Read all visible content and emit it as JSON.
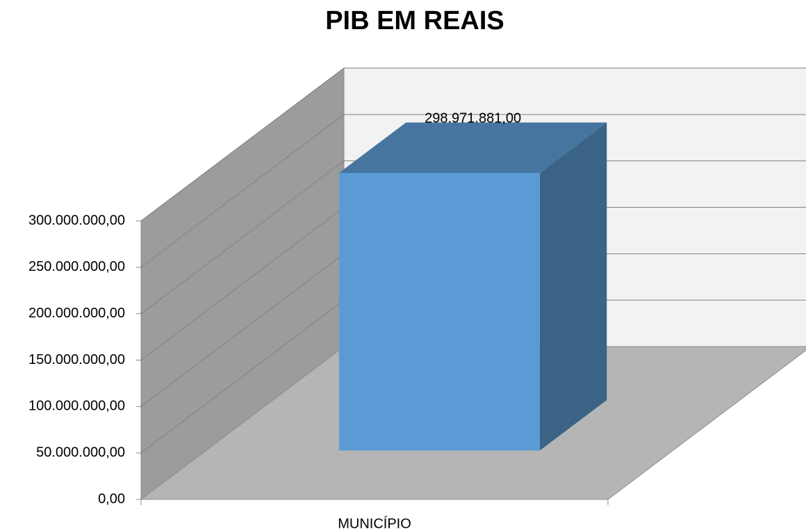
{
  "chart_data": {
    "type": "bar3d",
    "title": "PIB EM REAIS",
    "categories": [
      "MUNICÍPIO"
    ],
    "values": [
      298971881
    ],
    "value_labels": [
      "298.971.881,00"
    ],
    "color": "#5b9bd5",
    "ylim": [
      0,
      300000000
    ],
    "yticks": [
      {
        "value": 0,
        "label": "0,00"
      },
      {
        "value": 50000000,
        "label": "50.000.000,00"
      },
      {
        "value": 100000000,
        "label": "100.000.000,00"
      },
      {
        "value": 150000000,
        "label": "150.000.000,00"
      },
      {
        "value": 200000000,
        "label": "200.000.000,00"
      },
      {
        "value": 250000000,
        "label": "250.000.000,00"
      },
      {
        "value": 300000000,
        "label": "300.000.000,00"
      }
    ],
    "grid": true
  }
}
